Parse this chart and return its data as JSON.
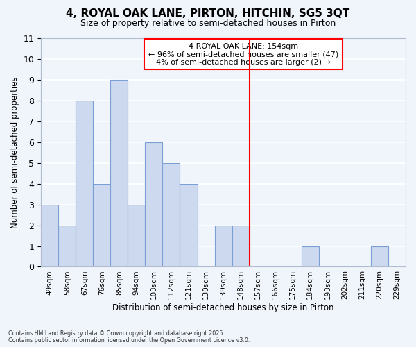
{
  "title": "4, ROYAL OAK LANE, PIRTON, HITCHIN, SG5 3QT",
  "subtitle": "Size of property relative to semi-detached houses in Pirton",
  "xlabel": "Distribution of semi-detached houses by size in Pirton",
  "ylabel": "Number of semi-detached properties",
  "categories": [
    "49sqm",
    "58sqm",
    "67sqm",
    "76sqm",
    "85sqm",
    "94sqm",
    "103sqm",
    "112sqm",
    "121sqm",
    "130sqm",
    "139sqm",
    "148sqm",
    "157sqm",
    "166sqm",
    "175sqm",
    "184sqm",
    "193sqm",
    "202sqm",
    "211sqm",
    "220sqm",
    "229sqm"
  ],
  "values": [
    3,
    2,
    8,
    4,
    9,
    3,
    6,
    5,
    4,
    0,
    2,
    2,
    0,
    0,
    0,
    1,
    0,
    0,
    0,
    1,
    0
  ],
  "bar_color": "#ccd9ee",
  "bar_edge_color": "#7a9fd4",
  "pct_smaller": 96,
  "n_smaller": 47,
  "pct_larger": 4,
  "n_larger": 2,
  "property_sqm": 154,
  "property_label": "4 ROYAL OAK LANE: 154sqm",
  "ylim": [
    0,
    11
  ],
  "yticks": [
    0,
    1,
    2,
    3,
    4,
    5,
    6,
    7,
    8,
    9,
    10,
    11
  ],
  "background_color": "#f0f4fb",
  "grid_color": "#ffffff",
  "footer_line1": "Contains HM Land Registry data © Crown copyright and database right 2025.",
  "footer_line2": "Contains public sector information licensed under the Open Government Licence v3.0."
}
